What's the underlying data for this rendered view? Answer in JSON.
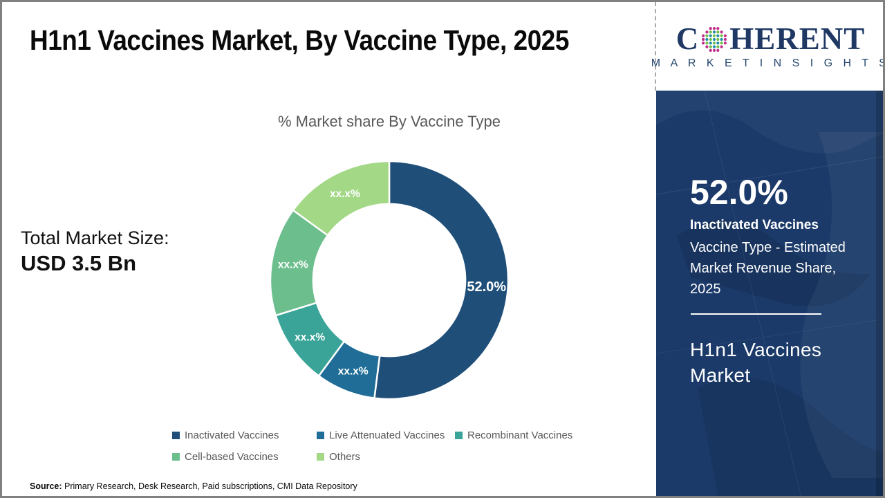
{
  "page": {
    "title": "H1n1 Vaccines Market, By Vaccine Type, 2025"
  },
  "logo": {
    "brand_prefix": "C",
    "brand_suffix": "HERENT",
    "brand_subtitle": "M A R K E T   I N S I G H T S",
    "navy": "#1F3864",
    "globe_dot_colors": {
      "outer": "#C02C8C",
      "teal": "#1E8CA8",
      "green": "#72BE44"
    }
  },
  "summary": {
    "total_label": "Total Market Size:",
    "total_value": "USD 3.5 Bn"
  },
  "chart_data": {
    "type": "pie",
    "subtype": "donut",
    "title": "% Market share By Vaccine Type",
    "categories": [
      "Inactivated Vaccines",
      "Live Attenuated Vaccines",
      "Recombinant Vaccines",
      "Cell-based Vaccines",
      "Others"
    ],
    "values": [
      52.0,
      8.1,
      10.1,
      14.8,
      15.0
    ],
    "value_labels": [
      "52.0%",
      "xx.x%",
      "xx.x%",
      "xx.x%",
      "xx.x%"
    ],
    "colors": [
      "#1F4E79",
      "#206E98",
      "#39A497",
      "#6CBE8C",
      "#A2D886"
    ],
    "start_angle_deg": 0,
    "direction": "clockwise",
    "donut_hole_ratio": 0.64,
    "legend_position": "bottom",
    "label_color": "#FFFFFF"
  },
  "sidebar": {
    "stat_value": "52.0%",
    "stat_label": "Inactivated Vaccines",
    "stat_desc": "Vaccine Type - Estimated Market Revenue Share, 2025",
    "panel_title": "H1n1 Vaccines Market",
    "bg_color": "#1B3A69"
  },
  "footer": {
    "source_label": "Source:",
    "source_text": " Primary Research, Desk Research, Paid subscriptions, CMI Data Repository"
  }
}
